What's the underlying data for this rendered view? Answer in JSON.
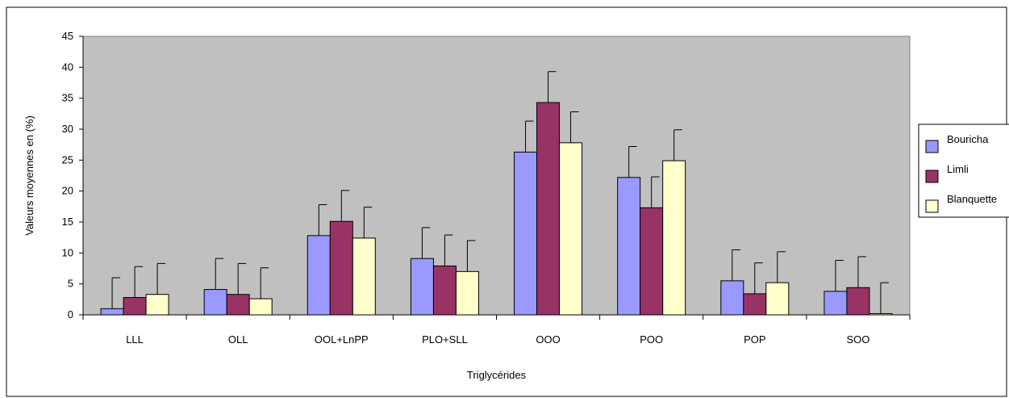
{
  "chart_data": {
    "type": "bar",
    "xlabel": "Triglycérides",
    "ylabel": "Valeurs moyennes en (%)",
    "ylim": [
      0,
      45
    ],
    "yticks": [
      0,
      5,
      10,
      15,
      20,
      25,
      30,
      35,
      40,
      45
    ],
    "categories": [
      "LLL",
      "OLL",
      "OOL+LnPP",
      "PLO+SLL",
      "OOO",
      "POO",
      "POP",
      "SOO"
    ],
    "series": [
      {
        "name": "Bouricha",
        "color": "#9999ff",
        "values": [
          1.0,
          4.1,
          12.8,
          9.1,
          26.3,
          22.2,
          5.5,
          3.8
        ],
        "error": [
          5,
          5,
          5,
          5,
          5,
          5,
          5,
          5
        ]
      },
      {
        "name": "Limli",
        "color": "#993366",
        "values": [
          2.8,
          3.3,
          15.1,
          7.9,
          34.3,
          17.3,
          3.4,
          4.4
        ],
        "error": [
          5,
          5,
          5,
          5,
          5,
          5,
          5,
          5
        ]
      },
      {
        "name": "Blanquette",
        "color": "#ffffcc",
        "values": [
          3.3,
          2.6,
          12.4,
          7.0,
          27.8,
          24.9,
          5.2,
          0.2
        ],
        "error": [
          5,
          5,
          5,
          5,
          5,
          5,
          5,
          5
        ]
      }
    ],
    "grid": false,
    "plot_background": "#c0c0c0",
    "legend": "right"
  }
}
